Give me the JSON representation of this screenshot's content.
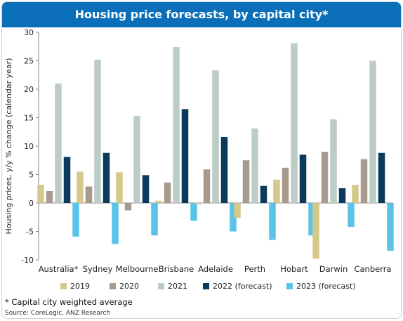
{
  "title": "Housing price forecasts, by capital city*",
  "footnote": "* Capital city weighted average",
  "source": "Source: CoreLogic, ANZ Research",
  "chart_data": {
    "type": "bar",
    "title": "Housing price forecasts, by capital city*",
    "ylabel": "Housing prices, y/y % change (calendar year)",
    "xlabel": "",
    "ylim": [
      -10,
      30
    ],
    "yticks": [
      -10,
      -5,
      0,
      5,
      10,
      15,
      20,
      25,
      30
    ],
    "legend_position": "bottom",
    "categories": [
      "Australia*",
      "Sydney",
      "Melbourne",
      "Brisbane",
      "Adelaide",
      "Perth",
      "Hobart",
      "Darwin",
      "Canberra"
    ],
    "series": [
      {
        "name": "2019",
        "color": "#d4c98a",
        "values": [
          3.2,
          5.5,
          5.4,
          0.4,
          -0.2,
          -2.6,
          4.1,
          -9.8,
          3.2
        ]
      },
      {
        "name": "2020",
        "color": "#a89a8d",
        "values": [
          2.1,
          2.9,
          -1.3,
          3.6,
          5.9,
          7.5,
          6.2,
          9.0,
          7.7
        ]
      },
      {
        "name": "2021",
        "color": "#bccdc8",
        "values": [
          21.0,
          25.2,
          15.3,
          27.4,
          23.3,
          13.1,
          28.1,
          14.7,
          25.0
        ]
      },
      {
        "name": "2022 (forecast)",
        "color": "#0b3a5c",
        "values": [
          8.1,
          8.8,
          4.9,
          16.5,
          11.6,
          3.0,
          8.5,
          2.6,
          8.8
        ]
      },
      {
        "name": "2023 (forecast)",
        "color": "#59c3e8",
        "values": [
          -5.9,
          -7.2,
          -5.7,
          -3.1,
          -5.0,
          -6.5,
          -5.7,
          -4.2,
          -8.4
        ]
      }
    ]
  }
}
